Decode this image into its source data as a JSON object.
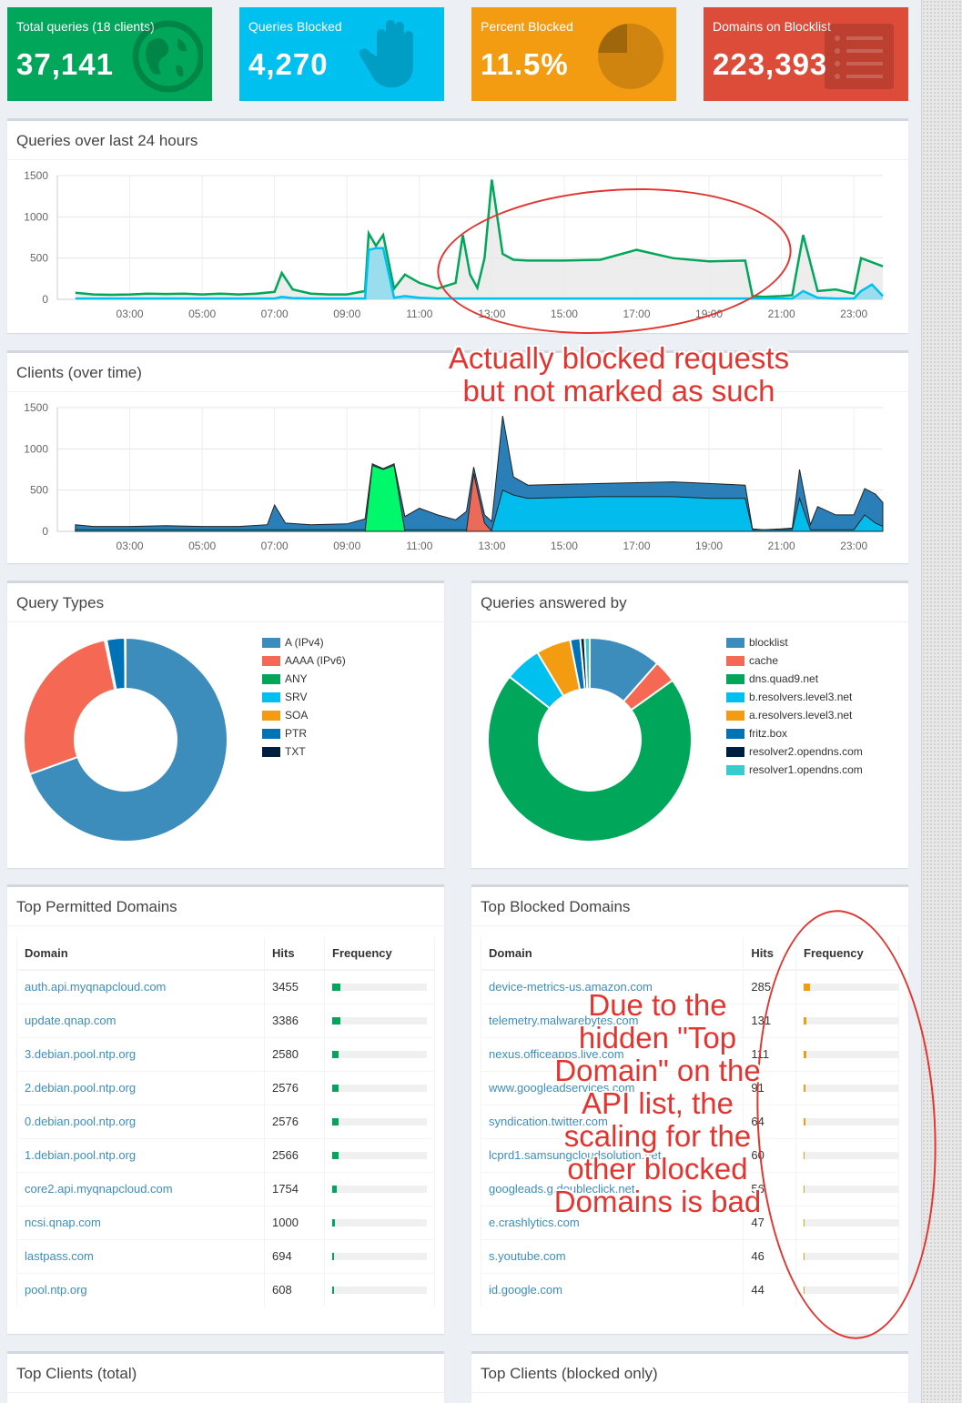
{
  "tiles": [
    {
      "label": "Total queries (18 clients)",
      "value": "37,141",
      "color": "#00a65a",
      "icon": "globe-icon"
    },
    {
      "label": "Queries Blocked",
      "value": "4,270",
      "color": "#00c0ef",
      "icon": "hand-icon"
    },
    {
      "label": "Percent Blocked",
      "value": "11.5%",
      "color": "#f39c12",
      "icon": "pie-chart-icon"
    },
    {
      "label": "Domains on Blocklist",
      "value": "223,393",
      "color": "#dd4b39",
      "icon": "list-icon"
    }
  ],
  "queries_chart": {
    "title": "Queries over last 24 hours"
  },
  "clients_chart": {
    "title": "Clients (over time)"
  },
  "query_types": {
    "title": "Query Types"
  },
  "answered_by": {
    "title": "Queries answered by"
  },
  "top_permitted": {
    "title": "Top Permitted Domains",
    "headers": [
      "Domain",
      "Hits",
      "Frequency"
    ],
    "rows": [
      {
        "domain": "auth.api.myqnapcloud.com",
        "hits": "3455",
        "freq": 0.087
      },
      {
        "domain": "update.qnap.com",
        "hits": "3386",
        "freq": 0.085
      },
      {
        "domain": "3.debian.pool.ntp.org",
        "hits": "2580",
        "freq": 0.065
      },
      {
        "domain": "2.debian.pool.ntp.org",
        "hits": "2576",
        "freq": 0.065
      },
      {
        "domain": "0.debian.pool.ntp.org",
        "hits": "2576",
        "freq": 0.065
      },
      {
        "domain": "1.debian.pool.ntp.org",
        "hits": "2566",
        "freq": 0.065
      },
      {
        "domain": "core2.api.myqnapcloud.com",
        "hits": "1754",
        "freq": 0.044
      },
      {
        "domain": "ncsi.qnap.com",
        "hits": "1000",
        "freq": 0.025
      },
      {
        "domain": "lastpass.com",
        "hits": "694",
        "freq": 0.018
      },
      {
        "domain": "pool.ntp.org",
        "hits": "608",
        "freq": 0.015
      }
    ]
  },
  "top_blocked": {
    "title": "Top Blocked Domains",
    "headers": [
      "Domain",
      "Hits",
      "Frequency"
    ],
    "rows": [
      {
        "domain": "device-metrics-us.amazon.com",
        "hits": "285",
        "freq": 0.067
      },
      {
        "domain": "telemetry.malwarebytes.com",
        "hits": "131",
        "freq": 0.031
      },
      {
        "domain": "nexus.officeapps.live.com",
        "hits": "111",
        "freq": 0.026
      },
      {
        "domain": "www.googleadservices.com",
        "hits": "91",
        "freq": 0.021
      },
      {
        "domain": "syndication.twitter.com",
        "hits": "64",
        "freq": 0.015
      },
      {
        "domain": "lcprd1.samsungcloudsolution.net",
        "hits": "60",
        "freq": 0.014
      },
      {
        "domain": "googleads.g.doubleclick.net",
        "hits": "56",
        "freq": 0.013
      },
      {
        "domain": "e.crashlytics.com",
        "hits": "47",
        "freq": 0.011
      },
      {
        "domain": "s.youtube.com",
        "hits": "46",
        "freq": 0.011
      },
      {
        "domain": "id.google.com",
        "hits": "44",
        "freq": 0.01
      }
    ]
  },
  "top_clients_total": {
    "title": "Top Clients (total)"
  },
  "top_clients_blocked": {
    "title": "Top Clients (blocked only)"
  },
  "annotations": {
    "a1": "Actually blocked requests but not marked as such",
    "a2": "Due to the hidden \"Top Domain\" on the API list, the scaling for the other blocked Domains is bad"
  },
  "chart_data": [
    {
      "type": "area",
      "name": "queries",
      "x_ticks": [
        "03:00",
        "05:00",
        "07:00",
        "09:00",
        "11:00",
        "13:00",
        "15:00",
        "17:00",
        "19:00",
        "21:00",
        "23:00"
      ],
      "y_ticks": [
        0,
        500,
        1000,
        1500
      ],
      "ylim": [
        0,
        1500
      ],
      "x": [
        1.5,
        2,
        2.5,
        3,
        3.5,
        4,
        4.5,
        5,
        5.5,
        6,
        6.5,
        7,
        7.2,
        7.5,
        8,
        8.5,
        9,
        9.5,
        9.6,
        9.8,
        10,
        10.3,
        10.6,
        11,
        11.5,
        12,
        12.2,
        12.4,
        12.6,
        12.8,
        13,
        13.3,
        13.6,
        14,
        15,
        16,
        17,
        18,
        19,
        20,
        20.2,
        20.5,
        21,
        21.3,
        21.6,
        22,
        22.5,
        23,
        23.2,
        23.5,
        23.8
      ],
      "series": [
        {
          "color": "#00a65a",
          "values": [
            80,
            60,
            55,
            60,
            70,
            65,
            70,
            60,
            70,
            60,
            70,
            90,
            320,
            120,
            70,
            60,
            60,
            100,
            800,
            650,
            780,
            130,
            300,
            200,
            130,
            200,
            780,
            300,
            140,
            500,
            1450,
            550,
            480,
            470,
            470,
            480,
            600,
            500,
            460,
            470,
            40,
            30,
            40,
            50,
            780,
            100,
            120,
            70,
            500,
            450,
            400
          ]
        },
        {
          "color": "#00c0ef",
          "values": [
            10,
            10,
            10,
            10,
            10,
            10,
            10,
            10,
            10,
            10,
            10,
            10,
            30,
            15,
            10,
            10,
            10,
            10,
            600,
            620,
            620,
            20,
            40,
            20,
            10,
            10,
            10,
            10,
            10,
            10,
            10,
            10,
            10,
            10,
            10,
            10,
            10,
            10,
            10,
            10,
            10,
            10,
            10,
            10,
            100,
            20,
            10,
            10,
            100,
            180,
            40
          ]
        }
      ]
    },
    {
      "type": "area",
      "name": "clients",
      "x_ticks": [
        "03:00",
        "05:00",
        "07:00",
        "09:00",
        "11:00",
        "13:00",
        "15:00",
        "17:00",
        "19:00",
        "21:00",
        "23:00"
      ],
      "y_ticks": [
        0,
        500,
        1000,
        1500
      ],
      "ylim": [
        0,
        1500
      ],
      "x": [
        1.5,
        2,
        3,
        4,
        5,
        6,
        6.8,
        7,
        7.3,
        8,
        9,
        9.5,
        9.7,
        10,
        10.3,
        10.6,
        11,
        11.5,
        12,
        12.3,
        12.5,
        12.8,
        13,
        13.3,
        13.6,
        14,
        16,
        18,
        19,
        20,
        20.2,
        20.5,
        21,
        21.3,
        21.5,
        21.8,
        22,
        22.5,
        23,
        23.3,
        23.6,
        23.8
      ],
      "series": [
        {
          "color": "#1f78b4",
          "values": [
            80,
            60,
            60,
            70,
            60,
            60,
            80,
            320,
            100,
            80,
            90,
            150,
            820,
            760,
            820,
            180,
            280,
            200,
            140,
            240,
            780,
            200,
            120,
            1400,
            660,
            560,
            580,
            600,
            580,
            560,
            30,
            20,
            30,
            40,
            750,
            80,
            300,
            200,
            200,
            520,
            450,
            350
          ]
        },
        {
          "color": "#00c0ef",
          "values": [
            20,
            20,
            20,
            20,
            20,
            20,
            20,
            20,
            20,
            20,
            20,
            20,
            20,
            20,
            20,
            20,
            20,
            20,
            20,
            20,
            20,
            20,
            20,
            500,
            440,
            400,
            420,
            420,
            400,
            400,
            20,
            20,
            20,
            20,
            400,
            20,
            20,
            20,
            20,
            200,
            100,
            60
          ]
        },
        {
          "color": "#00ff66",
          "values": [
            0,
            0,
            0,
            0,
            0,
            0,
            0,
            0,
            0,
            0,
            0,
            0,
            800,
            750,
            800,
            0,
            0,
            0,
            0,
            0,
            0,
            0,
            0,
            0,
            0,
            0,
            0,
            0,
            0,
            0,
            0,
            0,
            0,
            0,
            0,
            0,
            0,
            0,
            0,
            0,
            0,
            0
          ]
        },
        {
          "color": "#f56954",
          "values": [
            0,
            0,
            0,
            0,
            0,
            0,
            0,
            0,
            0,
            0,
            0,
            0,
            0,
            0,
            0,
            0,
            0,
            0,
            0,
            0,
            700,
            100,
            0,
            0,
            0,
            0,
            0,
            0,
            0,
            0,
            0,
            0,
            0,
            0,
            0,
            0,
            0,
            0,
            0,
            0,
            0,
            0
          ]
        }
      ]
    },
    {
      "type": "pie",
      "name": "query_types",
      "labels": [
        "A (IPv4)",
        "AAAA (IPv6)",
        "ANY",
        "SRV",
        "SOA",
        "PTR",
        "TXT"
      ],
      "values": [
        69.5,
        27.2,
        0.1,
        0.1,
        0.1,
        2.9,
        0.1
      ],
      "colors": [
        "#3c8dbc",
        "#f56954",
        "#00a65a",
        "#00c0ef",
        "#f39c12",
        "#0073b7",
        "#001f3f"
      ]
    },
    {
      "type": "pie",
      "name": "answered_by",
      "labels": [
        "blocklist",
        "cache",
        "dns.quad9.net",
        "b.resolvers.level3.net",
        "a.resolvers.level3.net",
        "fritz.box",
        "resolver2.opendns.com",
        "resolver1.opendns.com"
      ],
      "values": [
        11.5,
        3.6,
        70.5,
        5.8,
        5.5,
        1.6,
        0.7,
        0.8
      ],
      "colors": [
        "#3c8dbc",
        "#f56954",
        "#00a65a",
        "#00c0ef",
        "#f39c12",
        "#0073b7",
        "#001f3f",
        "#39cccc"
      ]
    }
  ]
}
